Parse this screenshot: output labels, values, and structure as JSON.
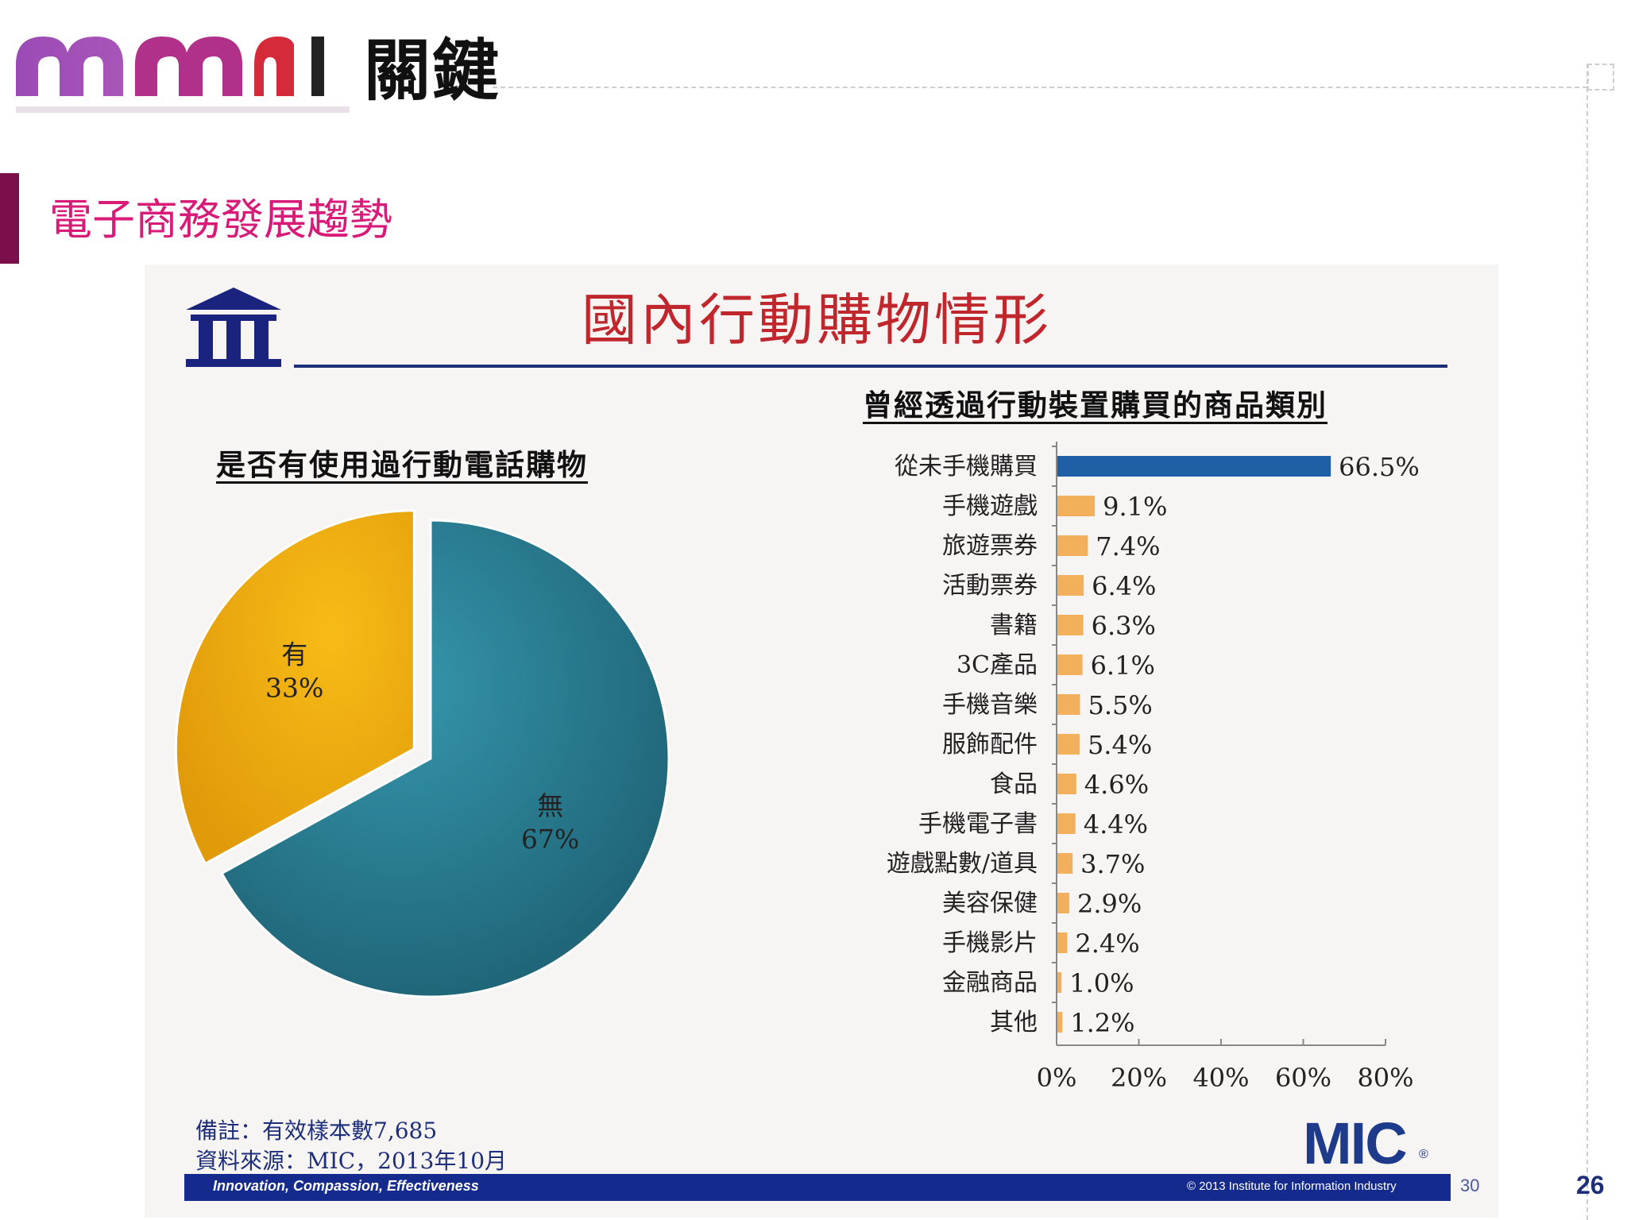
{
  "header": {
    "logo_text": "關鍵",
    "section_title": "電子商務發展趨勢",
    "page_number": "26"
  },
  "slide": {
    "title": "國內行動購物情形",
    "pie_heading": "是否有使用過行動電話購物",
    "bar_heading": "曾經透過行動裝置購買的商品類別",
    "note_line1": "備註：有效樣本數7,685",
    "note_line2": "資料來源：MIC，2013年10月",
    "brand": "MIC",
    "brand_mark": "®",
    "footer_slogan": "Innovation, Compassion, Effectiveness",
    "footer_copyright": "© 2013 Institute for Information Industry",
    "slide_number": "30"
  },
  "colors": {
    "pie_yes": "#e8a813",
    "pie_no": "#2a7f96",
    "bar_highlight": "#1f5fa5",
    "bar_default": "#f2b05c",
    "title_red": "#c0272d",
    "navy": "#1e2f7a",
    "section_pink": "#d81b78"
  },
  "chart_data": [
    {
      "type": "pie",
      "title": "是否有使用過行動電話購物",
      "slices": [
        {
          "label": "有",
          "value": 33,
          "display": "33%"
        },
        {
          "label": "無",
          "value": 67,
          "display": "67%"
        }
      ]
    },
    {
      "type": "bar",
      "orientation": "horizontal",
      "title": "曾經透過行動裝置購買的商品類別",
      "categories": [
        "從未手機購買",
        "手機遊戲",
        "旅遊票券",
        "活動票券",
        "書籍",
        "3C產品",
        "手機音樂",
        "服飾配件",
        "食品",
        "手機電子書",
        "遊戲點數/道具",
        "美容保健",
        "手機影片",
        "金融商品",
        "其他"
      ],
      "values": [
        66.5,
        9.1,
        7.4,
        6.4,
        6.3,
        6.1,
        5.5,
        5.4,
        4.6,
        4.4,
        3.7,
        2.9,
        2.4,
        1.0,
        1.2
      ],
      "value_labels": [
        "66.5%",
        "9.1%",
        "7.4%",
        "6.4%",
        "6.3%",
        "6.1%",
        "5.5%",
        "5.4%",
        "4.6%",
        "4.4%",
        "3.7%",
        "2.9%",
        "2.4%",
        "1.0%",
        "1.2%"
      ],
      "xlim": [
        0,
        80
      ],
      "xticks": [
        "0%",
        "20%",
        "40%",
        "60%",
        "80%"
      ],
      "grid": false
    }
  ]
}
